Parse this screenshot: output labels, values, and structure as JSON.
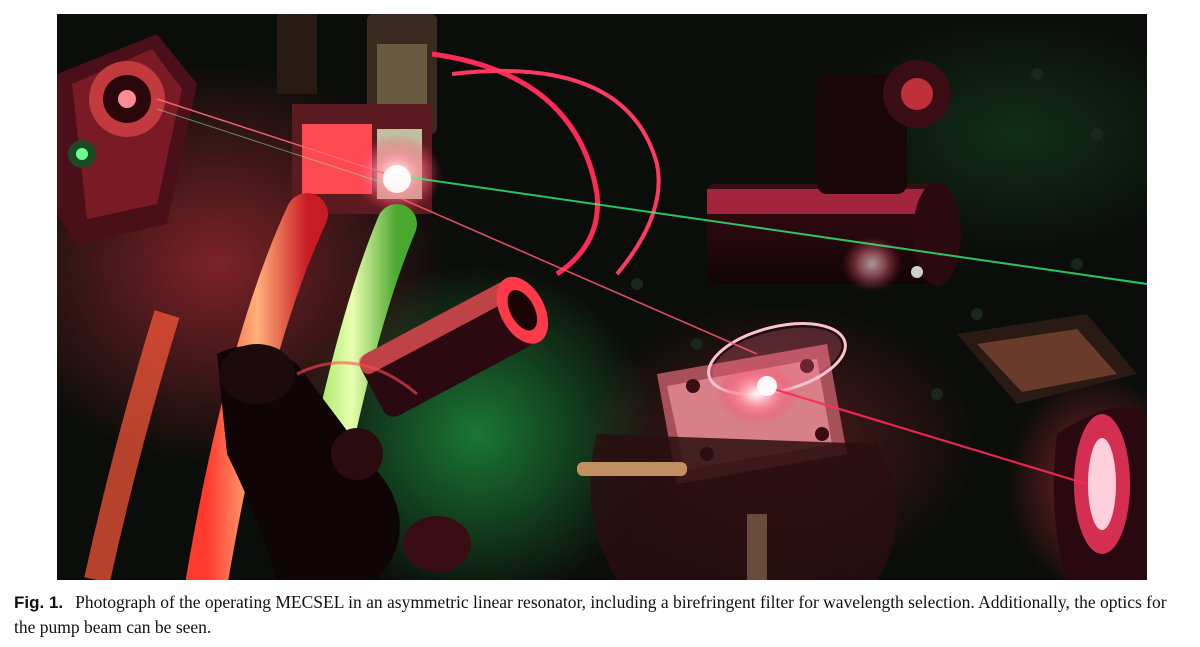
{
  "figure": {
    "label": "Fig. 1.",
    "caption": "Photograph of the operating MECSEL in an asymmetric linear resonator, including a birefringent filter for wavelength selection. Additionally, the optics for the pump beam can be seen."
  },
  "palette": {
    "background": "#0b0d0a",
    "laser_red": "#ff2a55",
    "laser_green": "#39ff7a"
  }
}
